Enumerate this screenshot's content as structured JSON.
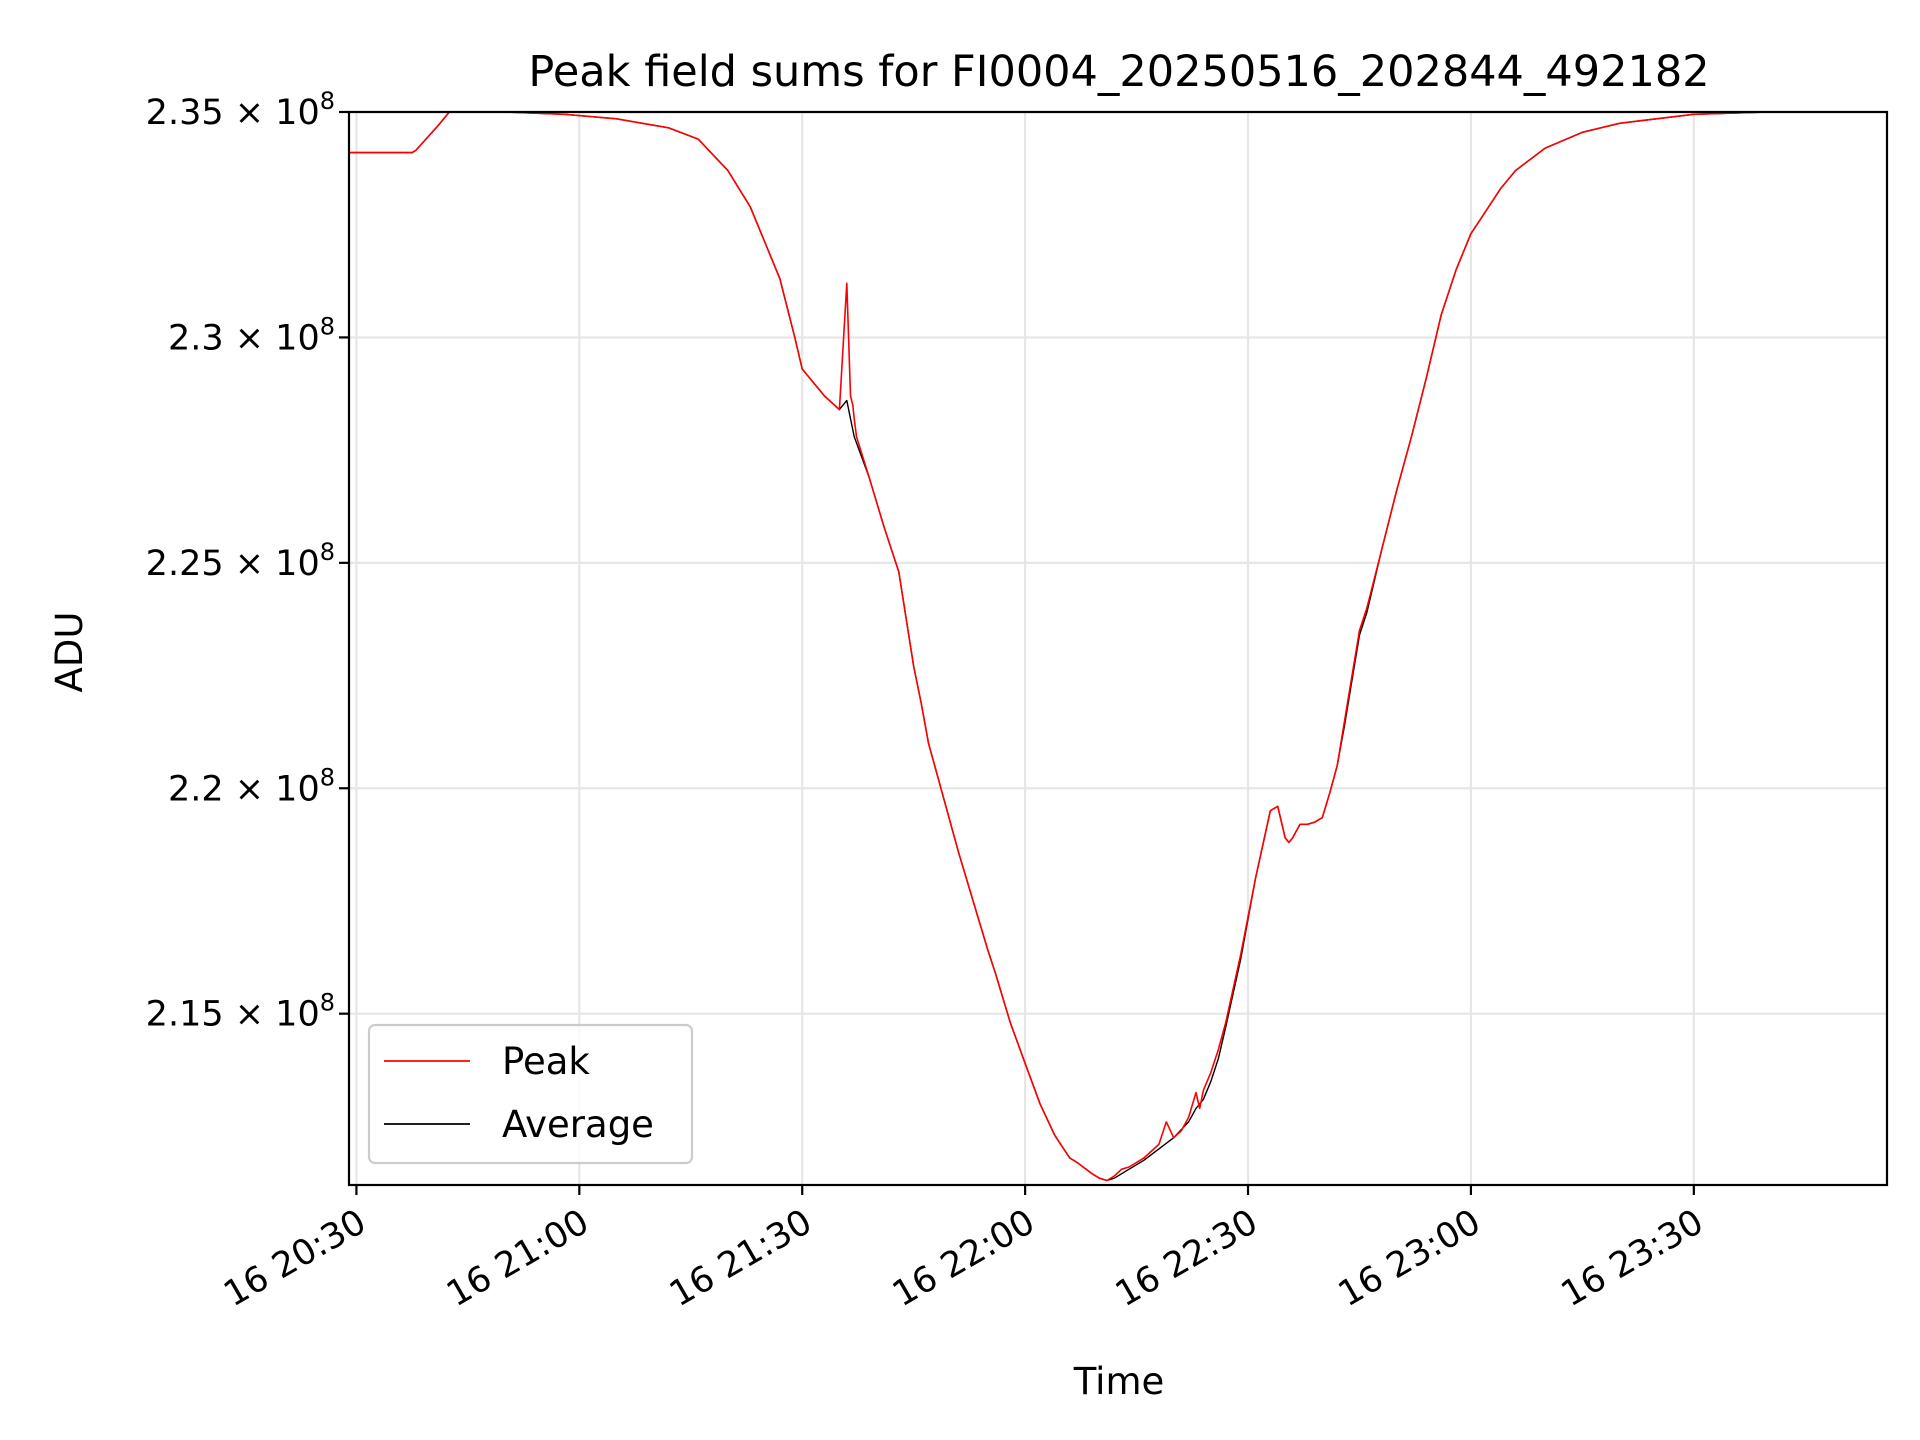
{
  "chart_data": {
    "type": "line",
    "title": "Peak field sums for FI0004_20250516_202844_492182",
    "xlabel": "Time",
    "ylabel": "ADU",
    "x_unit": "minutes since 2025-05-16 00:00",
    "xlim": [
      1229,
      1436
    ],
    "ylim": [
      211200000,
      235000000
    ],
    "x_ticks": [
      {
        "value": 1230,
        "label": "16 20:30"
      },
      {
        "value": 1260,
        "label": "16 21:00"
      },
      {
        "value": 1290,
        "label": "16 21:30"
      },
      {
        "value": 1320,
        "label": "16 22:00"
      },
      {
        "value": 1350,
        "label": "16 22:30"
      },
      {
        "value": 1380,
        "label": "16 23:00"
      },
      {
        "value": 1410,
        "label": "16 23:30"
      }
    ],
    "y_ticks": [
      {
        "value": 215000000,
        "mantissa": "2.15",
        "exp": "8"
      },
      {
        "value": 220000000,
        "mantissa": "2.2",
        "exp": "8"
      },
      {
        "value": 225000000,
        "mantissa": "2.25",
        "exp": "8"
      },
      {
        "value": 230000000,
        "mantissa": "2.3",
        "exp": "8"
      },
      {
        "value": 235000000,
        "mantissa": "2.35",
        "exp": "8"
      }
    ],
    "times_symbol": "×",
    "tick_base": "10",
    "grid": true,
    "legend_position": "lower-left",
    "series": [
      {
        "name": "Peak",
        "color": "#ff0000",
        "x": [
          1229,
          1237.5,
          1238,
          1241,
          1242.5,
          1245,
          1250,
          1258,
          1265,
          1272,
          1276,
          1280,
          1283,
          1286,
          1287,
          1289,
          1290,
          1293,
          1295,
          1296,
          1296.5,
          1296.8,
          1297,
          1297.3,
          1299,
          1301,
          1303,
          1305,
          1306,
          1307,
          1309,
          1311,
          1313,
          1315,
          1316,
          1318,
          1320,
          1322,
          1324,
          1326,
          1327,
          1329,
          1330,
          1331,
          1332,
          1333,
          1334,
          1336,
          1338,
          1339,
          1340,
          1341,
          1342,
          1343,
          1343.5,
          1344,
          1345,
          1346,
          1347,
          1349,
          1351,
          1353,
          1354,
          1355,
          1355.5,
          1356,
          1356.5,
          1357,
          1358,
          1359,
          1360,
          1361,
          1362,
          1363,
          1364,
          1365,
          1366,
          1368,
          1370,
          1372,
          1374,
          1376,
          1378,
          1380,
          1382,
          1384,
          1386,
          1390,
          1395,
          1400,
          1410,
          1420,
          1436
        ],
        "y": [
          234100000,
          234100000,
          234150000,
          234700000,
          235000000,
          235000000,
          235000000,
          234950000,
          234850000,
          234650000,
          234400000,
          233700000,
          232900000,
          231700000,
          231300000,
          230000000,
          229300000,
          228700000,
          228400000,
          231200000,
          228700000,
          228500000,
          228200000,
          227800000,
          226900000,
          225800000,
          224800000,
          222700000,
          221900000,
          221000000,
          219800000,
          218600000,
          217500000,
          216400000,
          215900000,
          214800000,
          213900000,
          213000000,
          212300000,
          211800000,
          211700000,
          211450000,
          211350000,
          211300000,
          211400000,
          211550000,
          211600000,
          211800000,
          212100000,
          212600000,
          212250000,
          212400000,
          212700000,
          213250000,
          212900000,
          213300000,
          213700000,
          214200000,
          214800000,
          216300000,
          218000000,
          219500000,
          219600000,
          218900000,
          218800000,
          218900000,
          219050000,
          219200000,
          219200000,
          219250000,
          219350000,
          219900000,
          220500000,
          221500000,
          222500000,
          223500000,
          224000000,
          225300000,
          226600000,
          227800000,
          229100000,
          230500000,
          231500000,
          232300000,
          232800000,
          233300000,
          233700000,
          234200000,
          234550000,
          234750000,
          234950000,
          235000000,
          235000000
        ]
      },
      {
        "name": "Average",
        "color": "#000000",
        "x": [
          1229,
          1237.5,
          1238,
          1241,
          1242.5,
          1245,
          1250,
          1258,
          1265,
          1272,
          1276,
          1280,
          1283,
          1286,
          1287,
          1289,
          1290,
          1293,
          1295,
          1296,
          1296.5,
          1297,
          1299,
          1301,
          1303,
          1305,
          1306,
          1307,
          1309,
          1311,
          1313,
          1315,
          1316,
          1318,
          1320,
          1322,
          1324,
          1326,
          1327,
          1329,
          1330,
          1331,
          1332,
          1333,
          1334,
          1336,
          1338,
          1340,
          1342,
          1343,
          1344,
          1345,
          1346,
          1347,
          1349,
          1351,
          1353,
          1354,
          1355,
          1355.5,
          1356,
          1356.5,
          1357,
          1358,
          1359,
          1360,
          1361,
          1362,
          1363,
          1364,
          1365,
          1366,
          1368,
          1370,
          1372,
          1374,
          1376,
          1378,
          1380,
          1382,
          1384,
          1386,
          1390,
          1395,
          1400,
          1410,
          1420,
          1436
        ],
        "y": [
          234100000,
          234100000,
          234150000,
          234700000,
          235000000,
          235000000,
          235000000,
          234950000,
          234850000,
          234650000,
          234400000,
          233700000,
          232900000,
          231700000,
          231300000,
          230000000,
          229300000,
          228700000,
          228400000,
          228600000,
          228200000,
          227800000,
          226900000,
          225800000,
          224800000,
          222700000,
          221900000,
          221000000,
          219800000,
          218600000,
          217500000,
          216400000,
          215900000,
          214800000,
          213900000,
          213000000,
          212300000,
          211800000,
          211700000,
          211450000,
          211350000,
          211300000,
          211350000,
          211450000,
          211550000,
          211750000,
          212000000,
          212250000,
          212600000,
          212900000,
          213100000,
          213500000,
          214000000,
          214700000,
          216200000,
          218000000,
          219500000,
          219600000,
          218900000,
          218800000,
          218900000,
          219050000,
          219200000,
          219200000,
          219250000,
          219350000,
          219900000,
          220500000,
          221400000,
          222400000,
          223400000,
          223900000,
          225300000,
          226600000,
          227800000,
          229100000,
          230500000,
          231500000,
          232300000,
          232800000,
          233300000,
          233700000,
          234200000,
          234550000,
          234750000,
          234950000,
          235000000,
          235000000
        ]
      }
    ]
  }
}
